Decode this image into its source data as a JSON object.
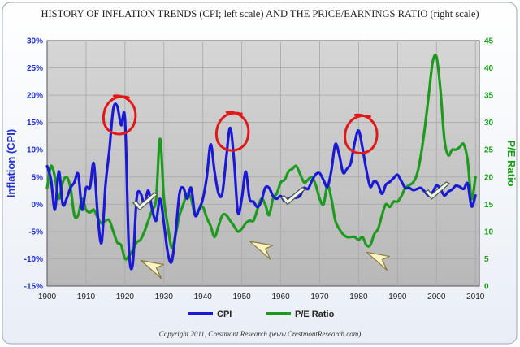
{
  "chart_data": {
    "type": "line",
    "title": "HISTORY OF INFLATION TRENDS (CPI; left scale) AND THE PRICE/EARNINGS RATIO (right scale)",
    "ylabel": "Inflation (CPI)",
    "y2label": "P/E Ratio",
    "xlabel": "",
    "xlim": [
      1900,
      2011
    ],
    "ylim": [
      -15,
      30
    ],
    "y2lim": [
      0,
      45
    ],
    "x_ticks": [
      "1900",
      "1910",
      "1920",
      "1930",
      "1940",
      "1950",
      "1960",
      "1970",
      "1980",
      "1990",
      "2000",
      "2010"
    ],
    "y_ticks": [
      "-15%",
      "-10%",
      "-5%",
      "0%",
      "5%",
      "10%",
      "15%",
      "20%",
      "25%",
      "30%"
    ],
    "y2_ticks": [
      "0",
      "5",
      "10",
      "15",
      "20",
      "25",
      "30",
      "35",
      "40",
      "45"
    ],
    "grid": true,
    "legend": "bottom-center",
    "colors": {
      "cpi": "#1a1ad6",
      "pe": "#1e9a1e",
      "plot_bg": "#c8c8c8",
      "annotation": "#e01818"
    },
    "series": [
      {
        "name": "CPI",
        "axis": "left",
        "x": [
          1900,
          1901,
          1902,
          1903,
          1904,
          1905,
          1906,
          1907,
          1908,
          1909,
          1910,
          1911,
          1912,
          1913,
          1914,
          1915,
          1916,
          1917,
          1918,
          1919,
          1920,
          1921,
          1922,
          1923,
          1924,
          1925,
          1926,
          1927,
          1928,
          1929,
          1930,
          1931,
          1932,
          1933,
          1934,
          1935,
          1936,
          1937,
          1938,
          1939,
          1940,
          1941,
          1942,
          1943,
          1944,
          1945,
          1946,
          1947,
          1948,
          1949,
          1950,
          1951,
          1952,
          1953,
          1954,
          1955,
          1956,
          1957,
          1958,
          1959,
          1960,
          1961,
          1962,
          1963,
          1964,
          1965,
          1966,
          1967,
          1968,
          1969,
          1970,
          1971,
          1972,
          1973,
          1974,
          1975,
          1976,
          1977,
          1978,
          1979,
          1980,
          1981,
          1982,
          1983,
          1984,
          1985,
          1986,
          1987,
          1988,
          1989,
          1990,
          1991,
          1992,
          1993,
          1994,
          1995,
          1996,
          1997,
          1998,
          1999,
          2000,
          2001,
          2002,
          2003,
          2004,
          2005,
          2006,
          2007,
          2008,
          2009,
          2010
        ],
        "values": [
          7,
          4.5,
          -1,
          6,
          0,
          1,
          3,
          4,
          5.5,
          -1,
          3,
          3,
          7.5,
          -2,
          -7,
          3.5,
          10,
          17.5,
          18,
          14.5,
          15.5,
          -8,
          -11,
          1,
          2,
          0,
          2.5,
          -1,
          -3,
          1,
          -3.5,
          -9,
          -10.5,
          -5.2,
          2,
          3,
          1,
          3,
          -2,
          -1,
          1,
          5,
          11,
          6,
          2,
          2,
          8.5,
          14,
          8,
          -1.5,
          1,
          6,
          1,
          0.5,
          -0.5,
          0.5,
          3,
          3,
          1.5,
          1,
          1.5,
          0.6,
          1.1,
          1.3,
          1.2,
          1.6,
          3,
          2.8,
          4.3,
          5.5,
          5.7,
          4.4,
          3.2,
          6.2,
          11,
          9.1,
          5.8,
          6.5,
          7.6,
          11.3,
          13.5,
          10.3,
          6.2,
          3.2,
          4.3,
          3.6,
          1.9,
          3.6,
          4.1,
          4.8,
          5.4,
          4.2,
          3,
          3,
          2.6,
          2.8,
          3,
          2.3,
          1.6,
          2.2,
          3.4,
          2.8,
          1.6,
          2.3,
          2.7,
          3.4,
          3.2,
          2.8,
          3.8,
          -0.4,
          1.6
        ]
      },
      {
        "name": "P/E Ratio",
        "axis": "right",
        "x": [
          1900,
          1901,
          1902,
          1903,
          1904,
          1905,
          1906,
          1907,
          1908,
          1909,
          1910,
          1911,
          1912,
          1913,
          1914,
          1915,
          1916,
          1917,
          1918,
          1919,
          1920,
          1921,
          1922,
          1923,
          1924,
          1925,
          1926,
          1927,
          1928,
          1929,
          1930,
          1931,
          1932,
          1933,
          1934,
          1935,
          1936,
          1937,
          1938,
          1939,
          1940,
          1941,
          1942,
          1943,
          1944,
          1945,
          1946,
          1947,
          1948,
          1949,
          1950,
          1951,
          1952,
          1953,
          1954,
          1955,
          1956,
          1957,
          1958,
          1959,
          1960,
          1961,
          1962,
          1963,
          1964,
          1965,
          1966,
          1967,
          1968,
          1969,
          1970,
          1971,
          1972,
          1973,
          1974,
          1975,
          1976,
          1977,
          1978,
          1979,
          1980,
          1981,
          1982,
          1983,
          1984,
          1985,
          1986,
          1987,
          1988,
          1989,
          1990,
          1991,
          1992,
          1993,
          1994,
          1995,
          1996,
          1997,
          1998,
          1999,
          2000,
          2001,
          2002,
          2003,
          2004,
          2005,
          2006,
          2007,
          2008,
          2009,
          2010
        ],
        "values": [
          18,
          22,
          20,
          16,
          19,
          20,
          18,
          13,
          13,
          16,
          14,
          13.5,
          14,
          12.5,
          11.5,
          12,
          12,
          10,
          8,
          7.5,
          5,
          5.5,
          6.5,
          8,
          8.5,
          10,
          12,
          14,
          16,
          27,
          16,
          11,
          7,
          9.5,
          13,
          15,
          17,
          16,
          13,
          14,
          14.5,
          12.5,
          11,
          9,
          11,
          13,
          13,
          12,
          11,
          10,
          10.5,
          11.5,
          12,
          12,
          14,
          16,
          15,
          13,
          16,
          17,
          19,
          19.5,
          21,
          21.5,
          22,
          20.5,
          19,
          19.5,
          20,
          18.5,
          16,
          15,
          18.5,
          16,
          12,
          10.5,
          9.5,
          9,
          9,
          9,
          8.5,
          9,
          7.5,
          7.5,
          9.5,
          10.5,
          13,
          15,
          14.5,
          15.5,
          15.5,
          16.5,
          18,
          18.5,
          19,
          20.5,
          24,
          29,
          35,
          41,
          42,
          36,
          27,
          24,
          25,
          25,
          25.5,
          26,
          23,
          16,
          20
        ]
      }
    ],
    "annotations": [
      {
        "type": "circle",
        "x": 1918,
        "y": 16
      },
      {
        "type": "circle",
        "x": 1947,
        "y": 13
      },
      {
        "type": "circle",
        "x": 1980,
        "y": 12.5
      },
      {
        "type": "check",
        "x": 1925,
        "y": 0
      },
      {
        "type": "check",
        "x": 1963,
        "y": 1
      },
      {
        "type": "check",
        "x": 2000,
        "y": 2
      },
      {
        "type": "arrow",
        "x": 1927,
        "y": -11.5
      },
      {
        "type": "arrow",
        "x": 1955,
        "y": -8
      },
      {
        "type": "arrow",
        "x": 1985,
        "y": -10
      }
    ],
    "copyright": "Copyright 2011, Crestmont Research (www.CrestmontResearch.com)"
  }
}
